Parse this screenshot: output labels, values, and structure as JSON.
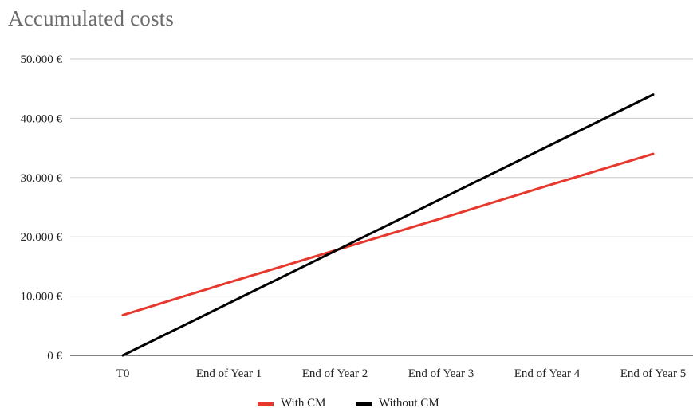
{
  "chart_data": {
    "type": "line",
    "title": "Accumulated costs",
    "xlabel": "",
    "ylabel": "",
    "categories": [
      "T0",
      "End of Year 1",
      "End of Year 2",
      "End of Year 3",
      "End of Year 4",
      "End of Year 5"
    ],
    "ylim": [
      0,
      50000
    ],
    "yticks": [
      0,
      10000,
      20000,
      30000,
      40000,
      50000
    ],
    "ytick_labels": [
      "0 €",
      "10.000 €",
      "20.000 €",
      "30.000 €",
      "40.000 €",
      "50.000 €"
    ],
    "grid": true,
    "legend_position": "bottom",
    "series": [
      {
        "name": "With CM",
        "color": "#e8372c",
        "values": [
          6800,
          12300,
          17700,
          23100,
          28600,
          34000
        ]
      },
      {
        "name": "Without CM",
        "color": "#000000",
        "values": [
          0,
          8800,
          17600,
          26400,
          35200,
          44000
        ]
      }
    ]
  },
  "colors": {
    "gridline": "#c8c8c8",
    "axis": "#333333"
  }
}
